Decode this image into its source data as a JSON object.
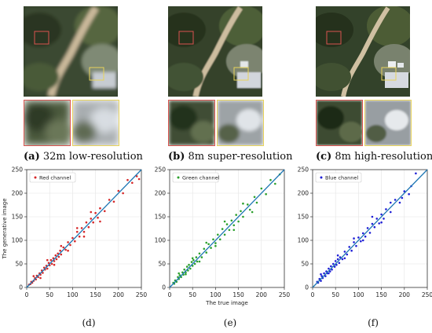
{
  "captions": {
    "a": {
      "letter": "(a)",
      "text": " 32m low-resolution"
    },
    "b": {
      "letter": "(b)",
      "text": " 8m super-resolution"
    },
    "c": {
      "letter": "(c)",
      "text": " 8m high-resolution"
    },
    "d": "(d)",
    "e": "(e)",
    "f": "(f)"
  },
  "colors": {
    "red": "#d62728",
    "green": "#2ca02c",
    "blue": "#1f1fd6",
    "fit_line": "#1f77b4"
  },
  "chart_data": [
    {
      "type": "scatter",
      "legend": "Red channel",
      "legend_position": "top-left",
      "ylabel": "The generative image",
      "xlabel": "",
      "xlim": [
        0,
        250
      ],
      "ylim": [
        0,
        250
      ],
      "xticks": [
        0,
        50,
        100,
        150,
        200,
        250
      ],
      "yticks": [
        0,
        50,
        100,
        150,
        200,
        250
      ],
      "grid": true,
      "marker_color": "#d62728",
      "reference_line": [
        [
          0,
          0
        ],
        [
          250,
          250
        ]
      ],
      "points": [
        [
          5,
          6
        ],
        [
          8,
          7
        ],
        [
          10,
          12
        ],
        [
          12,
          10
        ],
        [
          15,
          14
        ],
        [
          18,
          20
        ],
        [
          20,
          17
        ],
        [
          22,
          25
        ],
        [
          25,
          22
        ],
        [
          28,
          30
        ],
        [
          30,
          27
        ],
        [
          33,
          36
        ],
        [
          35,
          31
        ],
        [
          38,
          42
        ],
        [
          40,
          38
        ],
        [
          43,
          46
        ],
        [
          45,
          40
        ],
        [
          48,
          52
        ],
        [
          50,
          47
        ],
        [
          53,
          58
        ],
        [
          55,
          50
        ],
        [
          58,
          62
        ],
        [
          60,
          56
        ],
        [
          63,
          68
        ],
        [
          65,
          60
        ],
        [
          68,
          72
        ],
        [
          70,
          65
        ],
        [
          73,
          78
        ],
        [
          75,
          70
        ],
        [
          80,
          85
        ],
        [
          85,
          80
        ],
        [
          90,
          96
        ],
        [
          95,
          90
        ],
        [
          100,
          105
        ],
        [
          105,
          98
        ],
        [
          110,
          118
        ],
        [
          115,
          108
        ],
        [
          120,
          126
        ],
        [
          125,
          118
        ],
        [
          130,
          138
        ],
        [
          135,
          128
        ],
        [
          140,
          146
        ],
        [
          145,
          138
        ],
        [
          150,
          158
        ],
        [
          155,
          148
        ],
        [
          160,
          168
        ],
        [
          170,
          162
        ],
        [
          180,
          186
        ],
        [
          190,
          182
        ],
        [
          200,
          205
        ],
        [
          210,
          200
        ],
        [
          220,
          228
        ],
        [
          230,
          222
        ],
        [
          240,
          236
        ],
        [
          245,
          230
        ],
        [
          15,
          24
        ],
        [
          30,
          20
        ],
        [
          45,
          58
        ],
        [
          60,
          48
        ],
        [
          75,
          88
        ],
        [
          90,
          78
        ],
        [
          110,
          126
        ],
        [
          125,
          108
        ],
        [
          140,
          160
        ],
        [
          160,
          140
        ]
      ]
    },
    {
      "type": "scatter",
      "legend": "Green channel",
      "legend_position": "top-left",
      "ylabel": "",
      "xlabel": "The true image",
      "xlim": [
        0,
        250
      ],
      "ylim": [
        0,
        250
      ],
      "xticks": [
        0,
        50,
        100,
        150,
        200,
        250
      ],
      "yticks": [
        0,
        50,
        100,
        150,
        200,
        250
      ],
      "grid": true,
      "marker_color": "#2ca02c",
      "reference_line": [
        [
          0,
          0
        ],
        [
          250,
          250
        ]
      ],
      "points": [
        [
          8,
          10
        ],
        [
          10,
          8
        ],
        [
          12,
          15
        ],
        [
          15,
          12
        ],
        [
          18,
          22
        ],
        [
          20,
          18
        ],
        [
          22,
          26
        ],
        [
          25,
          22
        ],
        [
          28,
          32
        ],
        [
          30,
          27
        ],
        [
          32,
          38
        ],
        [
          35,
          32
        ],
        [
          38,
          44
        ],
        [
          40,
          36
        ],
        [
          42,
          48
        ],
        [
          45,
          40
        ],
        [
          48,
          54
        ],
        [
          50,
          46
        ],
        [
          52,
          58
        ],
        [
          55,
          50
        ],
        [
          58,
          64
        ],
        [
          60,
          55
        ],
        [
          65,
          72
        ],
        [
          70,
          64
        ],
        [
          75,
          82
        ],
        [
          80,
          74
        ],
        [
          85,
          92
        ],
        [
          90,
          84
        ],
        [
          95,
          102
        ],
        [
          100,
          94
        ],
        [
          105,
          112
        ],
        [
          110,
          102
        ],
        [
          115,
          124
        ],
        [
          120,
          112
        ],
        [
          125,
          134
        ],
        [
          130,
          122
        ],
        [
          135,
          142
        ],
        [
          140,
          132
        ],
        [
          145,
          154
        ],
        [
          150,
          140
        ],
        [
          155,
          162
        ],
        [
          160,
          150
        ],
        [
          170,
          176
        ],
        [
          175,
          165
        ],
        [
          185,
          192
        ],
        [
          190,
          180
        ],
        [
          200,
          210
        ],
        [
          210,
          198
        ],
        [
          220,
          228
        ],
        [
          230,
          220
        ],
        [
          240,
          240
        ],
        [
          20,
          30
        ],
        [
          35,
          28
        ],
        [
          50,
          62
        ],
        [
          65,
          55
        ],
        [
          80,
          95
        ],
        [
          100,
          88
        ],
        [
          120,
          140
        ],
        [
          140,
          122
        ],
        [
          160,
          178
        ],
        [
          180,
          160
        ]
      ]
    },
    {
      "type": "scatter",
      "legend": "Blue channel",
      "legend_position": "top-left",
      "ylabel": "",
      "xlabel": "",
      "xlim": [
        0,
        250
      ],
      "ylim": [
        0,
        250
      ],
      "xticks": [
        0,
        50,
        100,
        150,
        200,
        250
      ],
      "yticks": [
        0,
        50,
        100,
        150,
        200,
        250
      ],
      "grid": true,
      "marker_color": "#1f1fd6",
      "reference_line": [
        [
          0,
          0
        ],
        [
          250,
          250
        ]
      ],
      "points": [
        [
          10,
          12
        ],
        [
          12,
          10
        ],
        [
          15,
          18
        ],
        [
          18,
          14
        ],
        [
          20,
          24
        ],
        [
          22,
          20
        ],
        [
          25,
          30
        ],
        [
          28,
          24
        ],
        [
          30,
          34
        ],
        [
          32,
          30
        ],
        [
          35,
          40
        ],
        [
          38,
          34
        ],
        [
          40,
          45
        ],
        [
          42,
          38
        ],
        [
          45,
          50
        ],
        [
          48,
          44
        ],
        [
          50,
          56
        ],
        [
          52,
          48
        ],
        [
          55,
          60
        ],
        [
          58,
          52
        ],
        [
          60,
          64
        ],
        [
          65,
          60
        ],
        [
          70,
          76
        ],
        [
          75,
          70
        ],
        [
          80,
          86
        ],
        [
          85,
          78
        ],
        [
          90,
          96
        ],
        [
          95,
          88
        ],
        [
          100,
          106
        ],
        [
          105,
          98
        ],
        [
          110,
          115
        ],
        [
          115,
          108
        ],
        [
          120,
          126
        ],
        [
          125,
          116
        ],
        [
          130,
          135
        ],
        [
          135,
          128
        ],
        [
          140,
          146
        ],
        [
          145,
          136
        ],
        [
          150,
          155
        ],
        [
          155,
          146
        ],
        [
          160,
          166
        ],
        [
          170,
          160
        ],
        [
          180,
          186
        ],
        [
          190,
          180
        ],
        [
          200,
          204
        ],
        [
          210,
          198
        ],
        [
          215,
          215
        ],
        [
          225,
          242
        ],
        [
          18,
          28
        ],
        [
          35,
          30
        ],
        [
          55,
          68
        ],
        [
          70,
          62
        ],
        [
          90,
          104
        ],
        [
          110,
          100
        ],
        [
          130,
          150
        ],
        [
          150,
          138
        ],
        [
          170,
          180
        ],
        [
          195,
          190
        ]
      ]
    }
  ]
}
